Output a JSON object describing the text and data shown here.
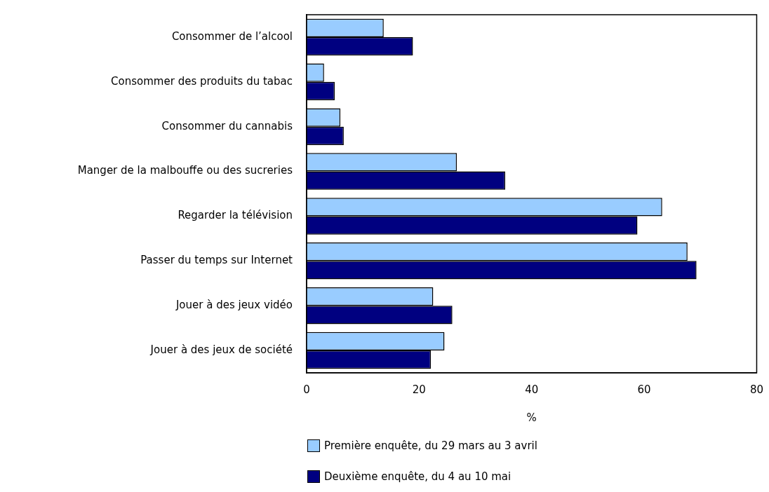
{
  "chart_data": {
    "type": "bar",
    "orientation": "horizontal",
    "xlabel": "%",
    "categories": [
      "Consommer de l’alcool",
      "Consommer des produits du tabac",
      "Consommer du cannabis",
      "Manger de la malbouffe ou des sucreries",
      "Regarder la télévision",
      "Passer du temps sur Internet",
      "Jouer à des jeux vidéo",
      "Jouer à des jeux de société"
    ],
    "series": [
      {
        "name": "Première enquête, du 29 mars au 3 avril",
        "color": "#99ccff",
        "values": [
          13.7,
          3.1,
          6.0,
          26.7,
          63.2,
          67.7,
          22.5,
          24.5
        ]
      },
      {
        "name": "Deuxième enquête, du 4 au 10 mai",
        "color": "#000080",
        "values": [
          18.9,
          5.0,
          6.6,
          35.3,
          58.8,
          69.3,
          25.9,
          22.1
        ]
      }
    ],
    "xlim": [
      0,
      80
    ],
    "xticks": [
      0,
      20,
      40,
      60,
      80
    ],
    "grid": false,
    "legend": "bottom"
  }
}
